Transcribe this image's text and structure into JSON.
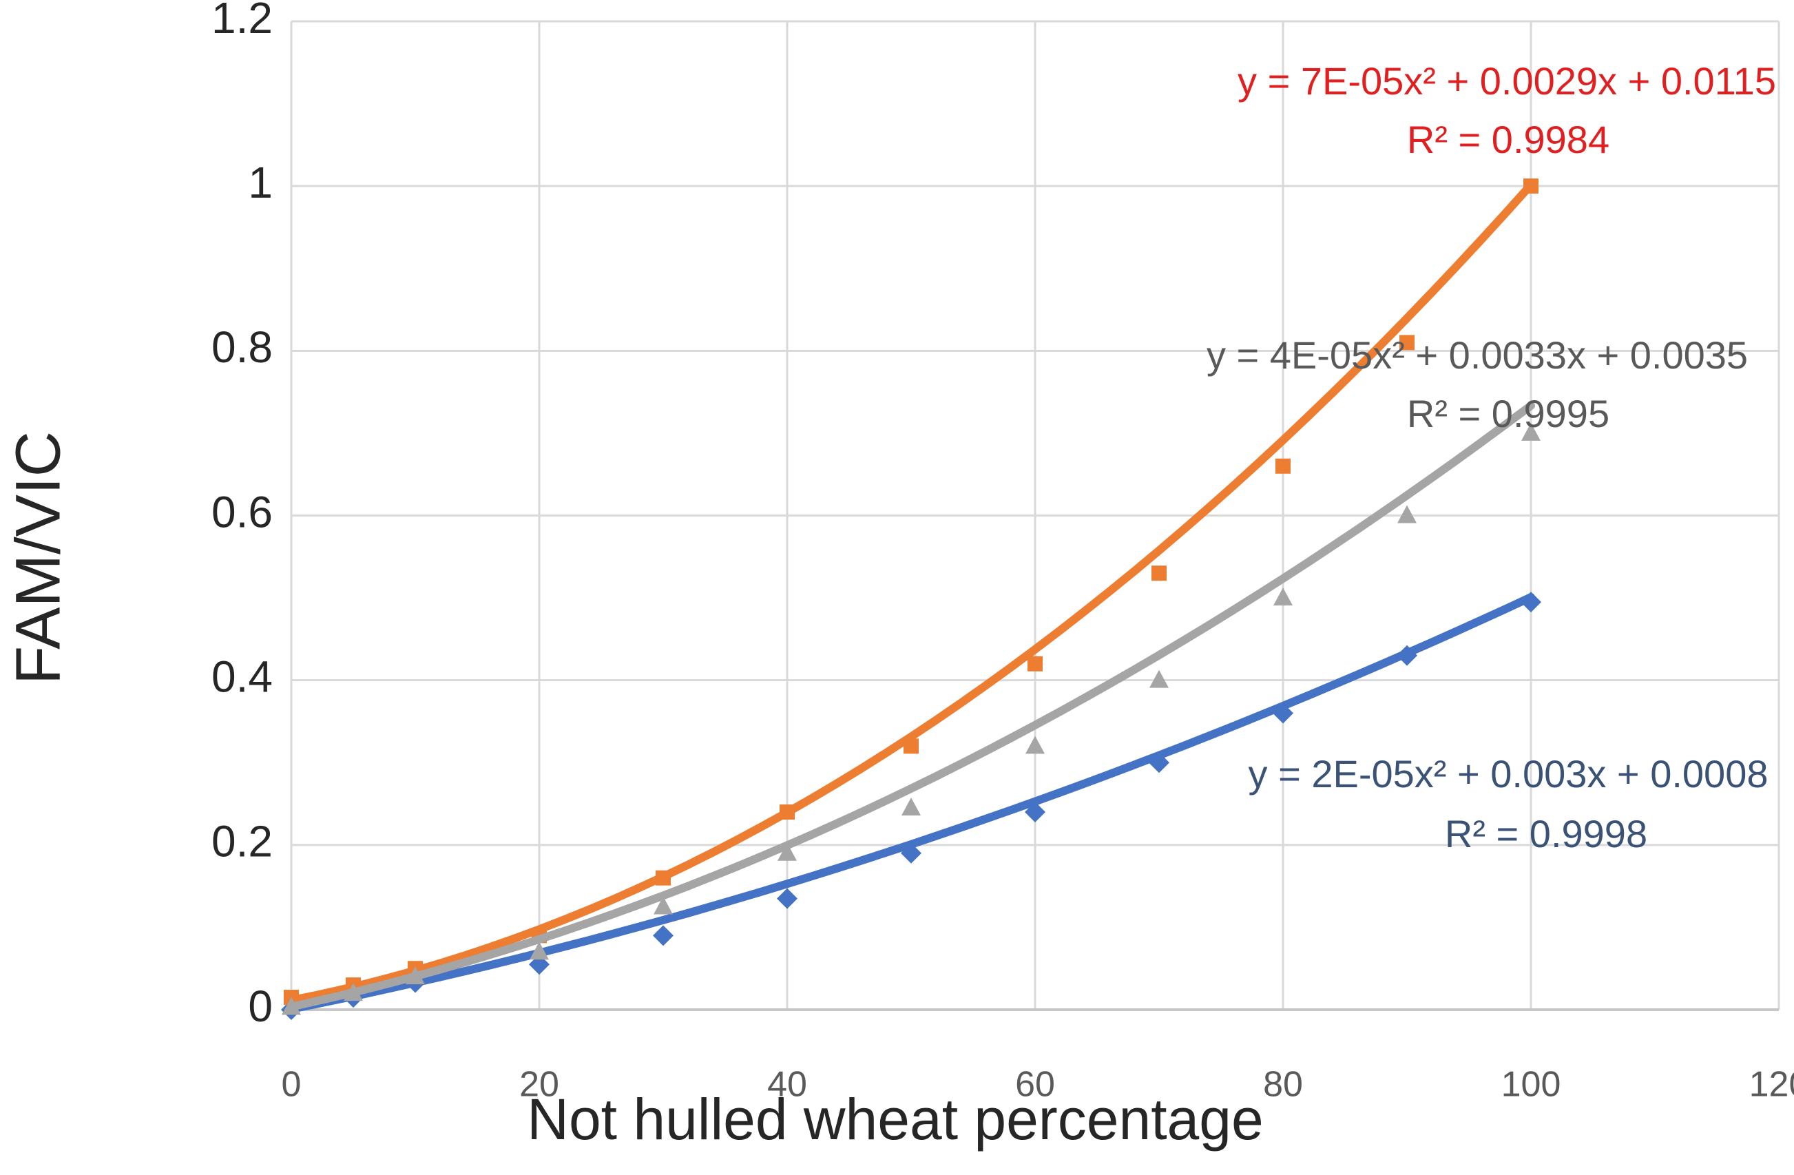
{
  "page": {
    "background": "#FFFFFF"
  },
  "chart_data": {
    "type": "scatter",
    "title": "",
    "xlabel": "Not hulled wheat percentage",
    "ylabel": "FAM/VIC",
    "xlim": [
      0,
      120
    ],
    "ylim": [
      0,
      1.2
    ],
    "grid": true,
    "legend": "none",
    "gridline_color": "#D9D9D9",
    "axis_line_color": "#C6C6C6",
    "x_tick_color": "#595959",
    "y_tick_color": "#262626",
    "axis_title_color": "#262626",
    "x_ticks": [
      0,
      20,
      40,
      60,
      80,
      100,
      120
    ],
    "x_tick_labels": [
      "0",
      "20",
      "40",
      "60",
      "80",
      "100",
      "120"
    ],
    "y_ticks": [
      0,
      0.2,
      0.4,
      0.6,
      0.8,
      1,
      1.2
    ],
    "y_tick_labels": [
      "0",
      "0.2",
      "0.4",
      "0.6",
      "0.8",
      "1",
      "1.2"
    ],
    "series": [
      {
        "name": "blue-diamond-series",
        "marker": "diamond",
        "color": "#4472C4",
        "points": [
          [
            0,
            0.0
          ],
          [
            5,
            0.015
          ],
          [
            10,
            0.033
          ],
          [
            20,
            0.055
          ],
          [
            30,
            0.09
          ],
          [
            40,
            0.135
          ],
          [
            50,
            0.19
          ],
          [
            60,
            0.24
          ],
          [
            70,
            0.3
          ],
          [
            80,
            0.36
          ],
          [
            90,
            0.43
          ],
          [
            100,
            0.495
          ]
        ],
        "trendline": {
          "type": "polynomial2",
          "a": 2e-05,
          "b": 0.003,
          "c": 0.0008,
          "x_range": [
            0,
            100
          ],
          "equation": "y = 2E-05x² + 0.003x + 0.0008",
          "r2": "R² = 0.9998",
          "label_color": "#3B5277"
        }
      },
      {
        "name": "orange-square-series",
        "marker": "square",
        "color": "#ED7D31",
        "points": [
          [
            0,
            0.015
          ],
          [
            5,
            0.03
          ],
          [
            10,
            0.05
          ],
          [
            20,
            0.09
          ],
          [
            30,
            0.16
          ],
          [
            40,
            0.24
          ],
          [
            50,
            0.32
          ],
          [
            60,
            0.42
          ],
          [
            70,
            0.53
          ],
          [
            80,
            0.66
          ],
          [
            90,
            0.81
          ],
          [
            100,
            1.0
          ]
        ],
        "trendline": {
          "type": "polynomial2",
          "a": 7e-05,
          "b": 0.0029,
          "c": 0.0115,
          "x_range": [
            0,
            100
          ],
          "equation": "y = 7E-05x² + 0.0029x + 0.0115",
          "r2": "R² = 0.9984",
          "label_color": "#E02020"
        }
      },
      {
        "name": "gray-triangle-series",
        "marker": "triangle",
        "color": "#A5A5A5",
        "points": [
          [
            0,
            0.003
          ],
          [
            5,
            0.02
          ],
          [
            10,
            0.04
          ],
          [
            20,
            0.07
          ],
          [
            30,
            0.125
          ],
          [
            40,
            0.19
          ],
          [
            50,
            0.245
          ],
          [
            60,
            0.32
          ],
          [
            70,
            0.4
          ],
          [
            80,
            0.5
          ],
          [
            90,
            0.6
          ],
          [
            100,
            0.7
          ]
        ],
        "trendline": {
          "type": "polynomial2",
          "a": 4e-05,
          "b": 0.0033,
          "c": 0.0035,
          "x_range": [
            0,
            100
          ],
          "equation": "y = 4E-05x² + 0.0033x + 0.0035",
          "r2": "R² = 0.9995",
          "label_color": "#595959"
        }
      }
    ]
  }
}
